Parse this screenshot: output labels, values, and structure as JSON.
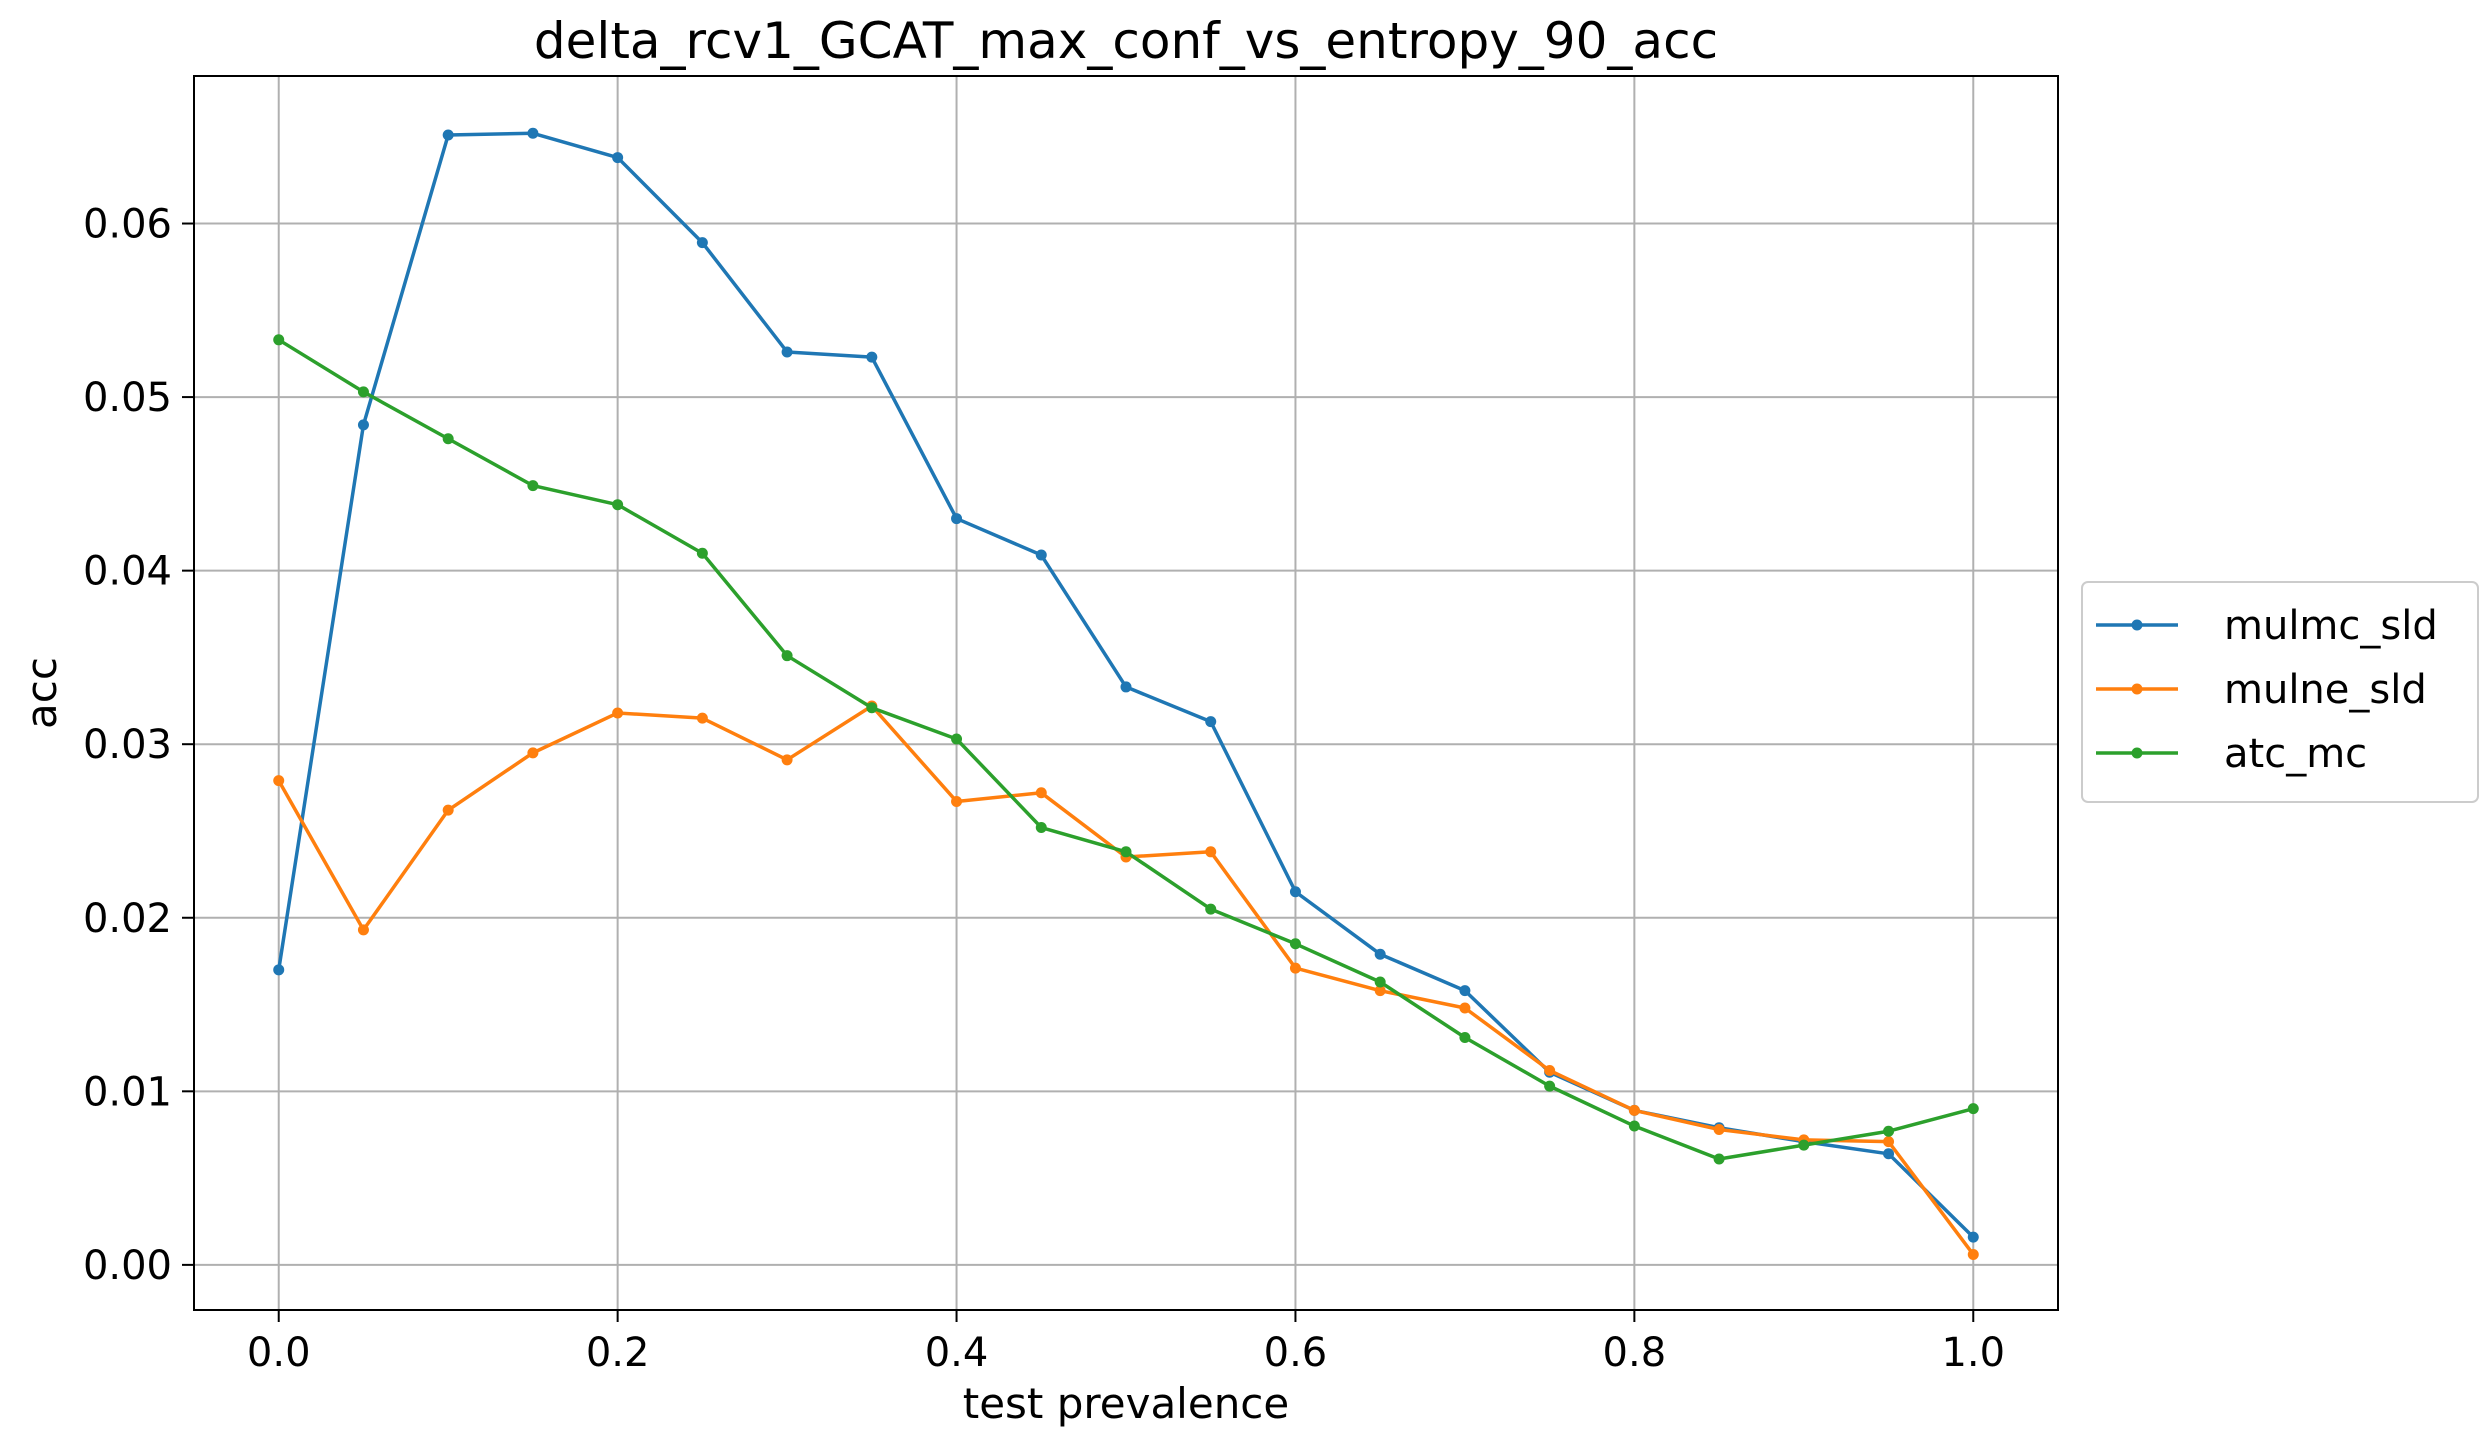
{
  "chart_data": {
    "type": "line",
    "title": "delta_rcv1_GCAT_max_conf_vs_entropy_90_acc",
    "xlabel": "test prevalence",
    "ylabel": "acc",
    "xlim": [
      -0.05,
      1.05
    ],
    "ylim": [
      -0.0026,
      0.0685
    ],
    "xticks": [
      0.0,
      0.2,
      0.4,
      0.6,
      0.8,
      1.0
    ],
    "xtick_labels": [
      "0.0",
      "0.2",
      "0.4",
      "0.6",
      "0.8",
      "1.0"
    ],
    "yticks": [
      0.0,
      0.01,
      0.02,
      0.03,
      0.04,
      0.05,
      0.06
    ],
    "ytick_labels": [
      "0.00",
      "0.01",
      "0.02",
      "0.03",
      "0.04",
      "0.05",
      "0.06"
    ],
    "grid": true,
    "legend_position": "center-right outside",
    "x": [
      0.0,
      0.05,
      0.1,
      0.15,
      0.2,
      0.25,
      0.3,
      0.35,
      0.4,
      0.45,
      0.5,
      0.55,
      0.6,
      0.65,
      0.7,
      0.75,
      0.8,
      0.85,
      0.9,
      0.95,
      1.0
    ],
    "series": [
      {
        "name": "mulmc_sld",
        "color": "#1f77b4",
        "values": [
          0.017,
          0.0484,
          0.0651,
          0.0652,
          0.0638,
          0.0589,
          0.0526,
          0.0523,
          0.043,
          0.0409,
          0.0333,
          0.0313,
          0.0215,
          0.0179,
          0.0158,
          0.0111,
          0.0089,
          0.0079,
          0.0071,
          0.0064,
          0.0016
        ]
      },
      {
        "name": "mulne_sld",
        "color": "#ff7f0e",
        "values": [
          0.0279,
          0.0193,
          0.0262,
          0.0295,
          0.0318,
          0.0315,
          0.0291,
          0.0322,
          0.0267,
          0.0272,
          0.0235,
          0.0238,
          0.0171,
          0.0158,
          0.0148,
          0.0112,
          0.0089,
          0.0078,
          0.0072,
          0.0071,
          0.0006
        ]
      },
      {
        "name": "atc_mc",
        "color": "#2ca02c",
        "values": [
          0.0533,
          0.0503,
          0.0476,
          0.0449,
          0.0438,
          0.041,
          0.0351,
          0.0321,
          0.0303,
          0.0252,
          0.0238,
          0.0205,
          0.0185,
          0.0163,
          0.0131,
          0.0103,
          0.008,
          0.0061,
          0.0069,
          0.0077,
          0.009
        ]
      }
    ]
  }
}
